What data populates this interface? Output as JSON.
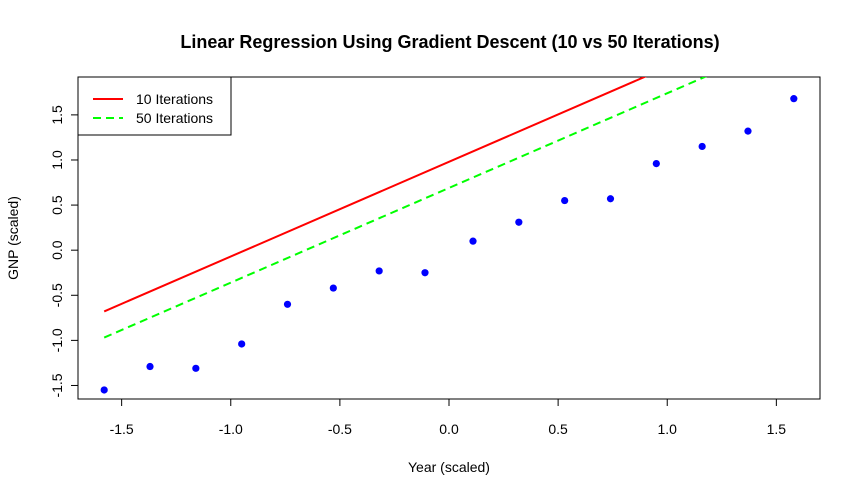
{
  "chart_data": {
    "type": "scatter",
    "title": "Linear Regression Using Gradient Descent (10 vs 50 Iterations)",
    "xlabel": "Year (scaled)",
    "ylabel": "GNP (scaled)",
    "xlim": [
      -1.7,
      1.7
    ],
    "ylim": [
      -1.65,
      1.92
    ],
    "x_ticks": [
      -1.5,
      -1.0,
      -0.5,
      0.0,
      0.5,
      1.0,
      1.5
    ],
    "x_tick_labels": [
      "-1.5",
      "-1.0",
      "-0.5",
      "0.0",
      "0.5",
      "1.0",
      "1.5"
    ],
    "y_ticks": [
      -1.5,
      -1.0,
      -0.5,
      0.0,
      0.5,
      1.0,
      1.5
    ],
    "y_tick_labels": [
      "-1.5",
      "-1.0",
      "-0.5",
      "0.0",
      "0.5",
      "1.0",
      "1.5"
    ],
    "grid": false,
    "legend_position": "top-left",
    "points": {
      "color": "#0000ff",
      "x": [
        -1.58,
        -1.37,
        -1.16,
        -0.95,
        -0.74,
        -0.53,
        -0.32,
        -0.11,
        0.11,
        0.32,
        0.53,
        0.74,
        0.95,
        1.16,
        1.37,
        1.58
      ],
      "y": [
        -1.55,
        -1.29,
        -1.31,
        -1.04,
        -0.6,
        -0.42,
        -0.23,
        -0.25,
        0.1,
        0.31,
        0.55,
        0.57,
        0.96,
        1.15,
        1.32,
        1.68
      ]
    },
    "series": [
      {
        "name": "10 Iterations",
        "color": "#ff0000",
        "dash": "solid",
        "intercept": 0.98,
        "slope": 1.05,
        "x_range": [
          -1.58,
          1.58
        ]
      },
      {
        "name": "50 Iterations",
        "color": "#00ff00",
        "dash": "dashed",
        "intercept": 0.69,
        "slope": 1.05,
        "x_range": [
          -1.58,
          1.58
        ]
      }
    ]
  }
}
